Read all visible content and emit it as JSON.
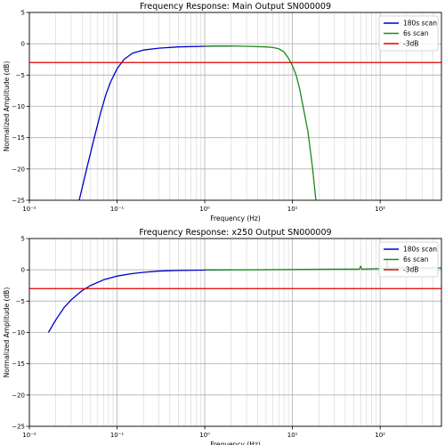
{
  "chart_data": [
    {
      "type": "line",
      "title": "Frequency Response: Main Output SN000009",
      "xlabel": "Frequency (Hz)",
      "ylabel": "Normalized Amplitude (dB)",
      "xscale": "log",
      "xlim": [
        0.01,
        500
      ],
      "ylim": [
        -25,
        5
      ],
      "xticks": [
        0.01,
        0.1,
        1,
        10,
        100
      ],
      "xtick_labels": [
        "10⁻²",
        "10⁻¹",
        "10⁰",
        "10¹",
        "10²"
      ],
      "yticks": [
        -25,
        -20,
        -15,
        -10,
        -5,
        0,
        5
      ],
      "ytick_labels": [
        "−25",
        "−20",
        "−15",
        "−10",
        "−5",
        "0",
        "5"
      ],
      "grid": true,
      "legend_position": "top-right",
      "series": [
        {
          "name": "180s scan",
          "color": "#0000cc",
          "x": [
            0.037,
            0.045,
            0.055,
            0.065,
            0.075,
            0.085,
            0.1,
            0.12,
            0.15,
            0.2,
            0.3,
            0.5,
            1.0,
            2.0
          ],
          "y": [
            -25,
            -20,
            -15,
            -11,
            -8,
            -6,
            -4,
            -2.5,
            -1.5,
            -1.0,
            -0.7,
            -0.5,
            -0.4,
            -0.35
          ]
        },
        {
          "name": "6s scan",
          "color": "#1a8a1a",
          "x": [
            1.0,
            2.0,
            3.0,
            5.0,
            6.0,
            7.0,
            8.0,
            9.0,
            10.0,
            11.0,
            12.0,
            13.0,
            15.0,
            17.0,
            18.5
          ],
          "y": [
            -0.4,
            -0.35,
            -0.4,
            -0.5,
            -0.6,
            -0.8,
            -1.3,
            -2.3,
            -3.5,
            -5.0,
            -7.0,
            -9.5,
            -14,
            -20,
            -25
          ]
        },
        {
          "name": "-3dB",
          "color": "#dd0000",
          "x": [
            0.01,
            500
          ],
          "y": [
            -3,
            -3
          ]
        }
      ]
    },
    {
      "type": "line",
      "title": "Frequency Response: x250 Output SN000009",
      "xlabel": "Frequency (Hz)",
      "ylabel": "Normalized Amplitude (dB)",
      "xscale": "log",
      "xlim": [
        0.01,
        500
      ],
      "ylim": [
        -25,
        5
      ],
      "xticks": [
        0.01,
        0.1,
        1,
        10,
        100
      ],
      "xtick_labels": [
        "10⁻²",
        "10⁻¹",
        "10⁰",
        "10¹",
        "10²"
      ],
      "yticks": [
        -25,
        -20,
        -15,
        -10,
        -5,
        0,
        5
      ],
      "ytick_labels": [
        "−25",
        "−20",
        "−15",
        "−10",
        "−5",
        "0",
        "5"
      ],
      "grid": true,
      "legend_position": "top-right",
      "series": [
        {
          "name": "180s scan",
          "color": "#0000cc",
          "x": [
            0.0165,
            0.02,
            0.025,
            0.03,
            0.04,
            0.05,
            0.07,
            0.1,
            0.15,
            0.2,
            0.3,
            0.5,
            1.0,
            2.0
          ],
          "y": [
            -10,
            -8,
            -6,
            -4.8,
            -3.3,
            -2.5,
            -1.6,
            -1.0,
            -0.6,
            -0.4,
            -0.2,
            -0.1,
            -0.05,
            0
          ]
        },
        {
          "name": "6s scan",
          "color": "#1a8a1a",
          "x": [
            1.0,
            3.0,
            10.0,
            30.0,
            58.0,
            60.0,
            62.0,
            100.0,
            118.0,
            120.0,
            122.0,
            200.0,
            238.0,
            240.0,
            242.0,
            300.0,
            500.0
          ],
          "y": [
            0,
            0,
            0.05,
            0.1,
            0.1,
            0.6,
            0.1,
            0.2,
            0.2,
            1.8,
            0.3,
            0.3,
            0.3,
            1.0,
            0.4,
            0.3,
            0.3
          ]
        },
        {
          "name": "-3dB",
          "color": "#dd0000",
          "x": [
            0.01,
            500
          ],
          "y": [
            -3,
            -3
          ]
        }
      ]
    }
  ]
}
